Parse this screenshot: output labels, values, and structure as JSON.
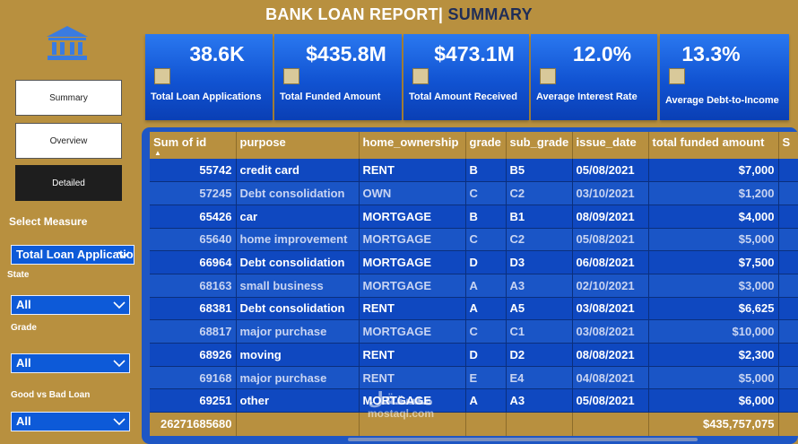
{
  "title": {
    "main": "BANK LOAN REPORT|",
    "accent": " SUMMARY"
  },
  "nav": {
    "summary": "Summary",
    "overview": "Overview",
    "detailed": "Detailed"
  },
  "filters": {
    "select_measure_label": "Select Measure",
    "measure_value": "Total Loan Applications",
    "state_label": "State",
    "state_value": "All",
    "grade_label": "Grade",
    "grade_value": "All",
    "good_bad_label": "Good vs Bad Loan",
    "good_bad_value": "All"
  },
  "kpis": [
    {
      "value": "38.6K",
      "label": "Total Loan Applications"
    },
    {
      "value": "$435.8M",
      "label": "Total Funded Amount"
    },
    {
      "value": "$473.1M",
      "label": "Total Amount Received"
    },
    {
      "value": "12.0%",
      "label": "Average Interest Rate"
    },
    {
      "value": "13.3%",
      "label": "Average Debt-to-Income"
    }
  ],
  "table": {
    "columns": [
      "Sum of id",
      "purpose",
      "home_ownership",
      "grade",
      "sub_grade",
      "issue_date",
      "total funded amount",
      "S"
    ],
    "rows": [
      [
        "55742",
        "credit card",
        "RENT",
        "B",
        "B5",
        "05/08/2021",
        "$7,000"
      ],
      [
        "57245",
        "Debt consolidation",
        "OWN",
        "C",
        "C2",
        "03/10/2021",
        "$1,200"
      ],
      [
        "65426",
        "car",
        "MORTGAGE",
        "B",
        "B1",
        "08/09/2021",
        "$4,000"
      ],
      [
        "65640",
        "home improvement",
        "MORTGAGE",
        "C",
        "C2",
        "05/08/2021",
        "$5,000"
      ],
      [
        "66964",
        "Debt consolidation",
        "MORTGAGE",
        "D",
        "D3",
        "06/08/2021",
        "$7,500"
      ],
      [
        "68163",
        "small business",
        "MORTGAGE",
        "A",
        "A3",
        "02/10/2021",
        "$3,000"
      ],
      [
        "68381",
        "Debt consolidation",
        "RENT",
        "A",
        "A5",
        "03/08/2021",
        "$6,625"
      ],
      [
        "68817",
        "major purchase",
        "MORTGAGE",
        "C",
        "C1",
        "03/08/2021",
        "$10,000"
      ],
      [
        "68926",
        "moving",
        "RENT",
        "D",
        "D2",
        "08/08/2021",
        "$2,300"
      ],
      [
        "69168",
        "major purchase",
        "RENT",
        "E",
        "E4",
        "04/08/2021",
        "$5,000"
      ],
      [
        "69251",
        "other",
        "MORTGAGE",
        "A",
        "A3",
        "05/08/2021",
        "$6,000"
      ]
    ],
    "total": {
      "id": "26271685680",
      "funded": "$435,757,075"
    }
  },
  "watermark": {
    "logo": "مستقل",
    "text": "mostaql.com"
  },
  "colors": {
    "background": "#b8903f",
    "kpi_blue": "#1153d2",
    "table_blue": "#0f48c0",
    "title_accent": "#1f2d57"
  }
}
